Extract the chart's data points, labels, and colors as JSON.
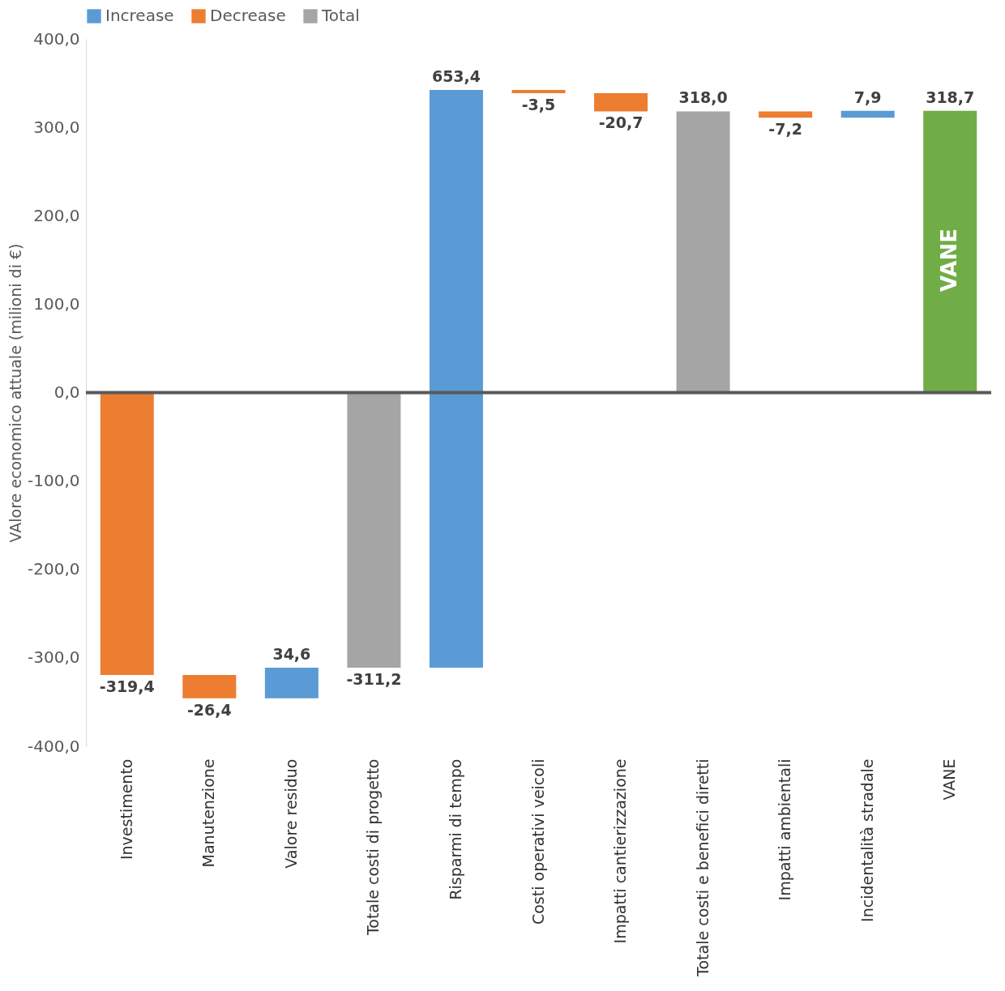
{
  "chart_data": {
    "type": "bar",
    "ylabel": "VAlore economico attuale (milioni di €)",
    "categories": [
      "Investimento",
      "Manutenzione",
      "Valore residuo",
      "Totale costi di progetto",
      "Risparmi di tempo",
      "Costi operativi veicoli",
      "Impatti cantierizzazione",
      "Totale costi e benefici diretti",
      "Impatti ambientali",
      "Incidentalità stradale",
      "VANE"
    ],
    "series": [
      {
        "name": "Increase",
        "color": "#5b9bd5",
        "base": [
          null,
          null,
          -345.8,
          null,
          -311.2,
          null,
          null,
          null,
          null,
          310.8,
          null
        ],
        "values": [
          null,
          null,
          34.6,
          null,
          653.4,
          null,
          null,
          null,
          null,
          7.9,
          null
        ],
        "value_labels": [
          null,
          null,
          "34,6",
          null,
          "653,4",
          null,
          null,
          null,
          null,
          "7,9",
          null
        ]
      },
      {
        "name": "Decrease",
        "color": "#ed7d31",
        "base": [
          0,
          -319.4,
          null,
          null,
          null,
          342.2,
          338.7,
          null,
          318.0,
          null,
          null
        ],
        "values": [
          -319.4,
          -26.4,
          null,
          null,
          null,
          -3.5,
          -20.7,
          null,
          -7.2,
          null,
          null
        ],
        "value_labels": [
          "-319,4",
          "-26,4",
          null,
          null,
          null,
          "-3,5",
          "-20,7",
          null,
          "-7,2",
          null,
          null
        ]
      },
      {
        "name": "Total",
        "color": "#a5a5a5",
        "base": [
          null,
          null,
          null,
          0,
          null,
          null,
          null,
          0,
          null,
          null,
          null
        ],
        "values": [
          null,
          null,
          null,
          -311.2,
          null,
          null,
          null,
          318.0,
          null,
          null,
          null
        ],
        "value_labels": [
          null,
          null,
          null,
          "-311,2",
          null,
          null,
          null,
          "318,0",
          null,
          null,
          null
        ]
      },
      {
        "color": "#70ad47",
        "base": [
          null,
          null,
          null,
          null,
          null,
          null,
          null,
          null,
          null,
          null,
          0
        ],
        "values": [
          null,
          null,
          null,
          null,
          null,
          null,
          null,
          null,
          null,
          null,
          318.7
        ],
        "value_labels": [
          null,
          null,
          null,
          null,
          null,
          null,
          null,
          null,
          null,
          null,
          "318,7"
        ]
      }
    ],
    "ylim": [
      -400,
      400
    ],
    "yticks": [
      {
        "value": -400,
        "label": "-400,0"
      },
      {
        "value": -300,
        "label": "-300,0"
      },
      {
        "value": -200,
        "label": "-200,0"
      },
      {
        "value": -100,
        "label": "-100,0"
      },
      {
        "value": 0,
        "label": "0,0"
      },
      {
        "value": 100,
        "label": "100,0"
      },
      {
        "value": 200,
        "label": "200,0"
      },
      {
        "value": 300,
        "label": "300,0"
      },
      {
        "value": 400,
        "label": "400,0"
      }
    ],
    "ref_lines": [
      {
        "axis": "y",
        "value": 0,
        "color": "#595959"
      }
    ],
    "annotations": [
      "VANE"
    ],
    "legend": "top"
  }
}
